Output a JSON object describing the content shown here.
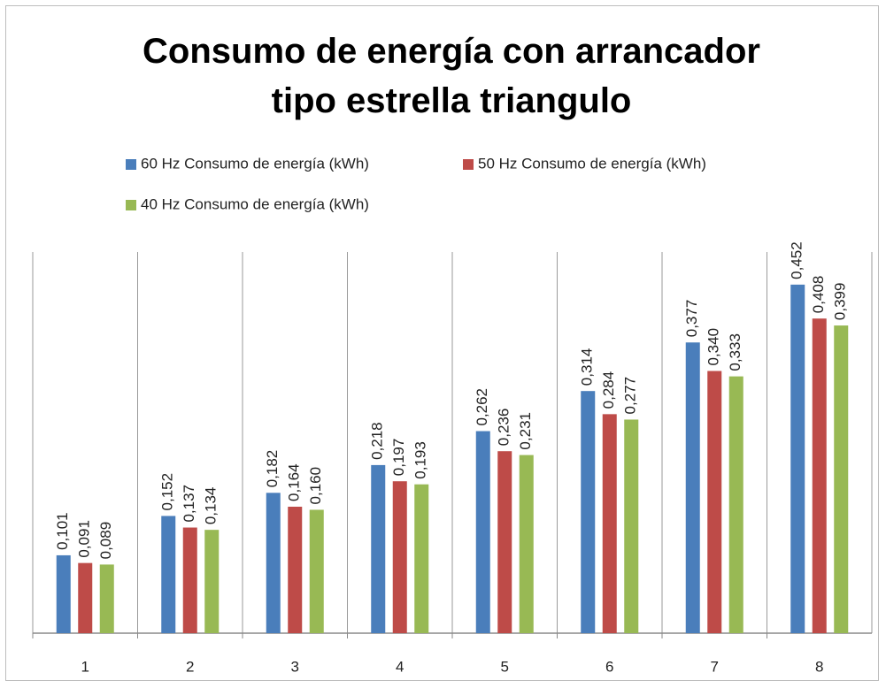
{
  "chart_data": {
    "type": "bar",
    "title": "Consumo de energía con arrancador tipo estrella triangulo",
    "categories": [
      "1",
      "2",
      "3",
      "4",
      "5",
      "6",
      "7",
      "8"
    ],
    "series": [
      {
        "name": "60 Hz Consumo de energía (kWh)",
        "color": "#4a7ebb",
        "values": [
          0.101,
          0.152,
          0.182,
          0.218,
          0.262,
          0.314,
          0.377,
          0.452
        ],
        "value_labels": [
          "0,101",
          "0,152",
          "0,182",
          "0,218",
          "0,262",
          "0,314",
          "0,377",
          "0,452"
        ]
      },
      {
        "name": "50 Hz Consumo de energía (kWh)",
        "color": "#be4b48",
        "values": [
          0.091,
          0.137,
          0.164,
          0.197,
          0.236,
          0.284,
          0.34,
          0.408
        ],
        "value_labels": [
          "0,091",
          "0,137",
          "0,164",
          "0,197",
          "0,236",
          "0,284",
          "0,340",
          "0,408"
        ]
      },
      {
        "name": "40 Hz Consumo de energía (kWh)",
        "color": "#98b954",
        "values": [
          0.089,
          0.134,
          0.16,
          0.193,
          0.231,
          0.277,
          0.333,
          0.399
        ],
        "value_labels": [
          "0,089",
          "0,134",
          "0,160",
          "0,193",
          "0,231",
          "0,277",
          "0,333",
          "0,399"
        ]
      }
    ]
  }
}
